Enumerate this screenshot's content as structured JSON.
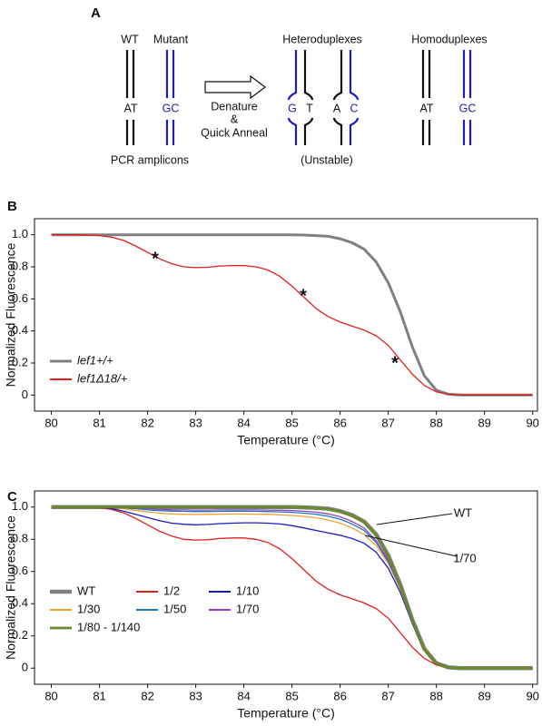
{
  "panel_labels": [
    "A",
    "B",
    "C"
  ],
  "diagram": {
    "wt": "WT",
    "mutant": "Mutant",
    "heteroduplexes": "Heteroduplexes",
    "homoduplexes": "Homoduplexes",
    "amplicons": "PCR amplicons",
    "unstable": "(Unstable)",
    "step": [
      "Denature",
      "&",
      "Quick Anneal"
    ],
    "bases": [
      "AT",
      "GC",
      "G",
      "T",
      "A",
      "C",
      "AT",
      "GC"
    ]
  },
  "chart_data": [
    {
      "type": "line",
      "xlabel": "Temperature (°C)",
      "ylabel": "Normalized Fluorescence",
      "xlim": [
        79.65,
        90.1
      ],
      "ylim": [
        -0.1,
        1.1
      ],
      "xticks": [
        80,
        81,
        82,
        83,
        84,
        85,
        86,
        87,
        88,
        89,
        90
      ],
      "yticks": [
        0,
        0.2,
        0.4,
        0.6,
        0.8,
        {
          "value": 1,
          "label": "1.0"
        }
      ],
      "legend": "lower left",
      "annotations": [
        "*",
        "*",
        "*"
      ],
      "x": [
        80,
        80.25,
        80.5,
        80.75,
        81,
        81.25,
        81.5,
        81.75,
        82,
        82.25,
        82.5,
        82.75,
        83,
        83.25,
        83.5,
        83.75,
        84,
        84.25,
        84.5,
        84.75,
        85,
        85.25,
        85.5,
        85.75,
        86,
        86.25,
        86.5,
        86.75,
        87,
        87.25,
        87.5,
        87.75,
        88,
        88.25,
        88.5,
        88.75,
        89,
        89.25,
        89.5,
        89.75,
        90
      ],
      "series": [
        {
          "name": "lef1+/+",
          "color": "#808080",
          "values": [
            1,
            1,
            1,
            1,
            1,
            1,
            1,
            1,
            1,
            1,
            1,
            1,
            1,
            1,
            1,
            1,
            1,
            1,
            1,
            1,
            1,
            0.998,
            0.995,
            0.99,
            0.975,
            0.95,
            0.91,
            0.83,
            0.7,
            0.52,
            0.3,
            0.12,
            0.03,
            0.005,
            0,
            0,
            0,
            0,
            0,
            0,
            0
          ]
        },
        {
          "name": "lef1Δ18/+",
          "color": "#e0201b",
          "values": [
            1,
            1,
            1,
            0.998,
            0.995,
            0.985,
            0.965,
            0.93,
            0.89,
            0.85,
            0.82,
            0.8,
            0.795,
            0.797,
            0.805,
            0.808,
            0.808,
            0.8,
            0.78,
            0.74,
            0.68,
            0.61,
            0.54,
            0.49,
            0.455,
            0.43,
            0.405,
            0.37,
            0.31,
            0.22,
            0.13,
            0.06,
            0.02,
            0.005,
            0,
            0,
            0,
            0,
            0,
            0,
            0
          ]
        }
      ]
    },
    {
      "type": "line",
      "xlabel": "Temperature (°C)",
      "ylabel": "Normalized Fluorescence",
      "xlim": [
        79.65,
        90.1
      ],
      "ylim": [
        -0.1,
        1.1
      ],
      "xticks": [
        80,
        81,
        82,
        83,
        84,
        85,
        86,
        87,
        88,
        89,
        90
      ],
      "yticks": [
        0,
        0.2,
        0.4,
        0.6,
        0.8,
        {
          "value": 1,
          "label": "1.0"
        }
      ],
      "legend": "lower left",
      "annotations": [
        "WT",
        "1/70"
      ],
      "x": [
        80,
        80.25,
        80.5,
        80.75,
        81,
        81.25,
        81.5,
        81.75,
        82,
        82.25,
        82.5,
        82.75,
        83,
        83.25,
        83.5,
        83.75,
        84,
        84.25,
        84.5,
        84.75,
        85,
        85.25,
        85.5,
        85.75,
        86,
        86.25,
        86.5,
        86.75,
        87,
        87.25,
        87.5,
        87.75,
        88,
        88.25,
        88.5,
        88.75,
        89,
        89.25,
        89.5,
        89.75,
        90
      ],
      "series": [
        {
          "name": "WT",
          "color": "#808080",
          "values": [
            1,
            1,
            1,
            1,
            1,
            1,
            1,
            1,
            1,
            1,
            1,
            1,
            1,
            1,
            1,
            1,
            1,
            1,
            1,
            1,
            1,
            0.998,
            0.995,
            0.99,
            0.975,
            0.95,
            0.91,
            0.83,
            0.7,
            0.52,
            0.3,
            0.12,
            0.03,
            0.005,
            0,
            0,
            0,
            0,
            0,
            0,
            0
          ]
        },
        {
          "name": "1/2",
          "color": "#e0201b",
          "values": [
            1,
            1,
            1,
            0.998,
            0.995,
            0.985,
            0.965,
            0.93,
            0.89,
            0.85,
            0.82,
            0.8,
            0.795,
            0.797,
            0.805,
            0.808,
            0.808,
            0.8,
            0.78,
            0.74,
            0.68,
            0.61,
            0.54,
            0.49,
            0.455,
            0.43,
            0.405,
            0.37,
            0.31,
            0.22,
            0.13,
            0.06,
            0.02,
            0.005,
            0,
            0,
            0,
            0,
            0,
            0,
            0
          ]
        },
        {
          "name": "1/10",
          "color": "#1c1cc4",
          "values": [
            1,
            1,
            1,
            1,
            0.998,
            0.99,
            0.975,
            0.955,
            0.935,
            0.915,
            0.9,
            0.893,
            0.89,
            0.892,
            0.897,
            0.9,
            0.902,
            0.902,
            0.9,
            0.895,
            0.885,
            0.87,
            0.855,
            0.84,
            0.825,
            0.805,
            0.775,
            0.72,
            0.62,
            0.47,
            0.28,
            0.11,
            0.03,
            0.005,
            0,
            0,
            0,
            0,
            0,
            0,
            0
          ]
        },
        {
          "name": "1/30",
          "color": "#f5a030",
          "values": [
            1,
            1,
            1,
            1,
            1,
            0.997,
            0.99,
            0.98,
            0.97,
            0.962,
            0.957,
            0.955,
            0.954,
            0.955,
            0.956,
            0.957,
            0.957,
            0.956,
            0.955,
            0.952,
            0.948,
            0.942,
            0.934,
            0.92,
            0.9,
            0.87,
            0.83,
            0.76,
            0.65,
            0.49,
            0.29,
            0.11,
            0.03,
            0.005,
            0,
            0,
            0,
            0,
            0,
            0,
            0
          ]
        },
        {
          "name": "1/50",
          "color": "#1f7ab8",
          "values": [
            1,
            1,
            1,
            1,
            1,
            1,
            0.995,
            0.99,
            0.983,
            0.978,
            0.975,
            0.973,
            0.972,
            0.972,
            0.973,
            0.974,
            0.974,
            0.973,
            0.972,
            0.97,
            0.967,
            0.962,
            0.955,
            0.943,
            0.925,
            0.895,
            0.855,
            0.78,
            0.66,
            0.5,
            0.29,
            0.115,
            0.03,
            0.005,
            0,
            0,
            0,
            0,
            0,
            0,
            0
          ]
        },
        {
          "name": "1/70",
          "color": "#9040c8",
          "values": [
            1,
            1,
            1,
            1,
            1,
            1,
            0.998,
            0.994,
            0.99,
            0.986,
            0.983,
            0.982,
            0.981,
            0.981,
            0.982,
            0.982,
            0.982,
            0.982,
            0.981,
            0.98,
            0.978,
            0.974,
            0.968,
            0.958,
            0.94,
            0.91,
            0.87,
            0.79,
            0.67,
            0.5,
            0.29,
            0.115,
            0.03,
            0.005,
            0,
            0,
            0,
            0,
            0,
            0,
            0
          ]
        },
        {
          "name": "1/80 - 1/140",
          "color": "#6b8a2c",
          "values": [
            1,
            1,
            1,
            1,
            1,
            1,
            1,
            1,
            1,
            1,
            1,
            1,
            1,
            1,
            1,
            1,
            1,
            1,
            1,
            1,
            1,
            0.997,
            0.993,
            0.987,
            0.972,
            0.945,
            0.905,
            0.825,
            0.695,
            0.515,
            0.3,
            0.12,
            0.03,
            0.005,
            0,
            0,
            0,
            0,
            0,
            0,
            0
          ]
        }
      ]
    }
  ]
}
